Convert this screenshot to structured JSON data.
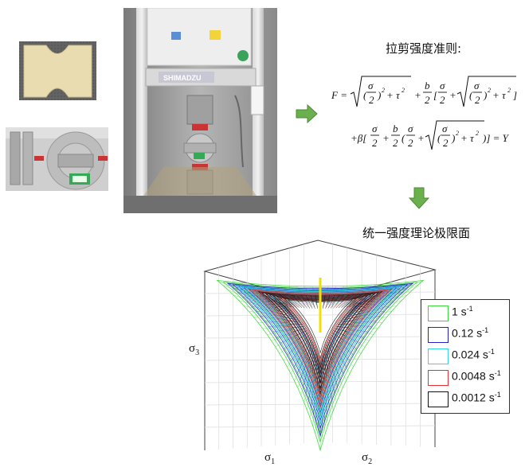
{
  "photos": {
    "specimen": "specimen-photo",
    "fixture": "fixture-photo",
    "machine": "testing-machine-photo",
    "machine_brand": "SHIMADZU"
  },
  "criterion": {
    "title": "拉剪强度准则:",
    "formula_line1_lhs": "F =",
    "formula_line2_tail": ")] = Y"
  },
  "surface": {
    "title": "统一强度理论极限面"
  },
  "chart_data": {
    "type": "surface-3d",
    "axes": {
      "x": "σ1",
      "y": "σ2",
      "z": "σ3"
    },
    "series": [
      {
        "name": "1 s-1",
        "color": "#3ad63a"
      },
      {
        "name": "0.12 s-1",
        "color": "#2222cc"
      },
      {
        "name": "0.024 s-1",
        "color": "#33d6e6"
      },
      {
        "name": "0.0048 s-1",
        "color": "#e23232"
      },
      {
        "name": "0.0012 s-1",
        "color": "#111111"
      }
    ],
    "legend": "right",
    "grid": true
  },
  "legend_items": [
    {
      "base": "1 s",
      "sup": "-1"
    },
    {
      "base": "0.12 s",
      "sup": "-1"
    },
    {
      "base": "0.024 s",
      "sup": "-1"
    },
    {
      "base": "0.0048 s",
      "sup": "-1"
    },
    {
      "base": "0.0012 s",
      "sup": "-1"
    }
  ],
  "axis_labels": {
    "x_base": "σ",
    "x_sub": "1",
    "y_base": "σ",
    "y_sub": "2",
    "z_base": "σ",
    "z_sub": "3"
  },
  "colors": {
    "arrow": "#6ab04c",
    "arrow_dark": "#4e8a37"
  }
}
